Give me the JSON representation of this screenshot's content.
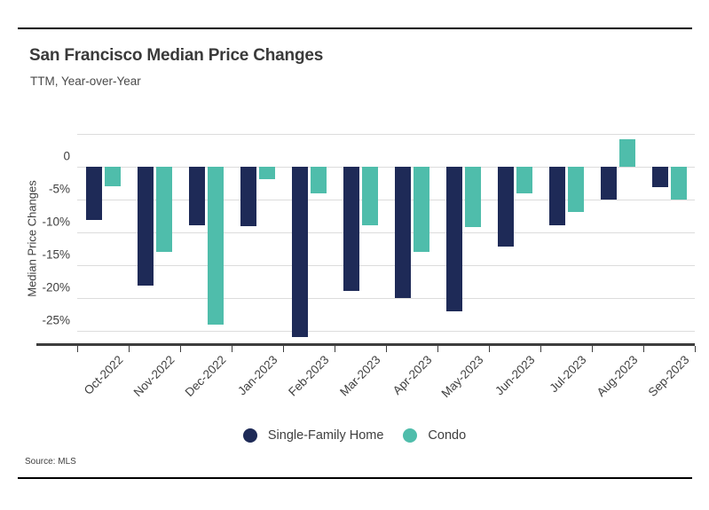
{
  "header": {
    "title": "San Francisco Median Price Changes",
    "subtitle": "TTM, Year-over-Year"
  },
  "chart_data": {
    "type": "bar",
    "title": "San Francisco Median Price Changes",
    "subtitle": "TTM, Year-over-Year",
    "xlabel": "",
    "ylabel": "Median Price Changes",
    "categories": [
      "Oct-2022",
      "Nov-2022",
      "Dec-2022",
      "Jan-2023",
      "Feb-2023",
      "Mar-2023",
      "Apr-2023",
      "May-2023",
      "Jun-2023",
      "Jul-2023",
      "Aug-2023",
      "Sep-2023"
    ],
    "series": [
      {
        "name": "Single-Family Home",
        "color": "#1e2a57",
        "values": [
          -8.1,
          -18.2,
          -9.0,
          -9.1,
          -26.0,
          -19.0,
          -20.1,
          -22.1,
          -12.2,
          -9.0,
          -5.0,
          -3.1
        ]
      },
      {
        "name": "Condo",
        "color": "#4fbdab",
        "values": [
          -3.0,
          -13.1,
          -24.1,
          -2.0,
          -4.1,
          -9.0,
          -13.1,
          -9.2,
          -4.1,
          -7.0,
          4.1,
          -5.0
        ]
      }
    ],
    "y_ticks": [
      {
        "label": "0",
        "value": 0
      },
      {
        "label": "-5%",
        "value": -5
      },
      {
        "label": "-10%",
        "value": -10
      },
      {
        "label": "-15%",
        "value": -15
      },
      {
        "label": "-20%",
        "value": -20
      },
      {
        "label": "-25%",
        "value": -25
      }
    ],
    "gridline_values": [
      5,
      0,
      -5,
      -10,
      -15,
      -20,
      -25
    ],
    "ylim": [
      5.1,
      -27.1
    ],
    "grid": true,
    "legend_position": "bottom"
  },
  "footer": {
    "source": "Source: MLS"
  }
}
